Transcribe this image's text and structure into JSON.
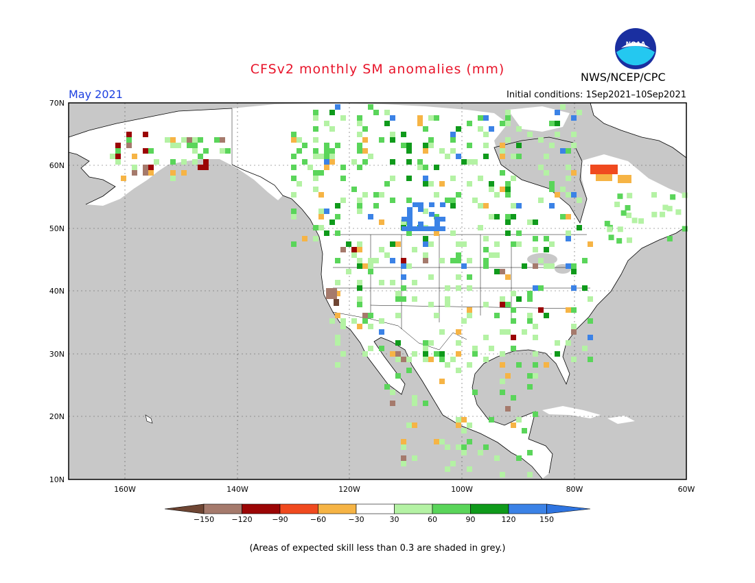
{
  "title": "CFSv2 monthly SM anomalies (mm)",
  "month_label": "May 2021",
  "initial_conditions": "Initial conditions: 1Sep2021–10Sep2021",
  "agency": "NWS/NCEP/CPC",
  "logo_icon": "noaa-logo-icon",
  "logo_text": "NOAA",
  "footnote": "(Areas of expected skill less than 0.3 are shaded in grey.)",
  "lat_labels": [
    "70N",
    "60N",
    "50N",
    "40N",
    "30N",
    "20N",
    "10N"
  ],
  "lon_labels": [
    "160W",
    "140W",
    "120W",
    "100W",
    "80W",
    "60W"
  ],
  "colorbar": {
    "ticks": [
      "−150",
      "−120",
      "−90",
      "−60",
      "−30",
      "30",
      "60",
      "90",
      "120",
      "150"
    ],
    "colors": [
      "#6e4533",
      "#a57a6c",
      "#9b0505",
      "#f04a1f",
      "#f6b445",
      "#ffffff",
      "#b4f2a4",
      "#5ad55a",
      "#0f9a1b",
      "#3b82e6",
      "#2e74e0"
    ]
  },
  "map_colors": {
    "ocean": "#c8c8c8",
    "land": "#ffffff",
    "coast": "#000000"
  }
}
